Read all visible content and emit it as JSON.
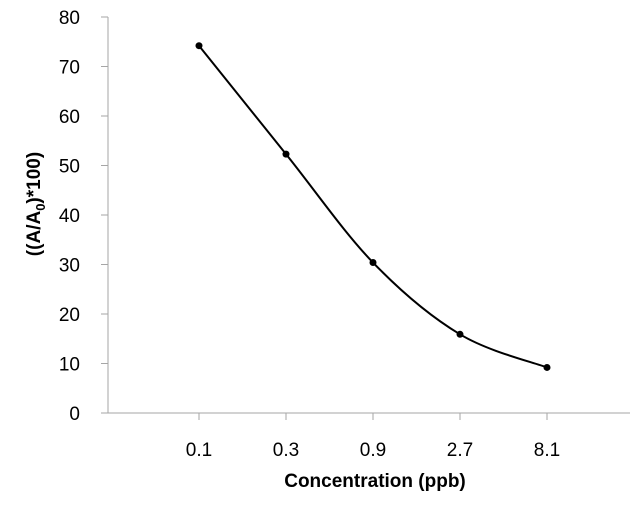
{
  "chart_data": {
    "type": "line",
    "categories": [
      "0.1",
      "0.3",
      "0.9",
      "2.7",
      "8.1"
    ],
    "values": [
      74.2,
      52.3,
      30.4,
      15.9,
      9.2
    ],
    "xlabel": "Concentration (ppb)",
    "ylabel": {
      "before_subscript": "((A/A",
      "subscript": "0",
      "after_subscript": ")*100)"
    },
    "y_ticks": [
      "0",
      "10",
      "20",
      "30",
      "40",
      "50",
      "60",
      "70",
      "80"
    ],
    "ylim": [
      0,
      80
    ],
    "grid": false,
    "legend": "none",
    "smoothed": true,
    "colors": {
      "line": "#000000",
      "marker": "#000000",
      "axis": "#a6a6a6"
    }
  }
}
